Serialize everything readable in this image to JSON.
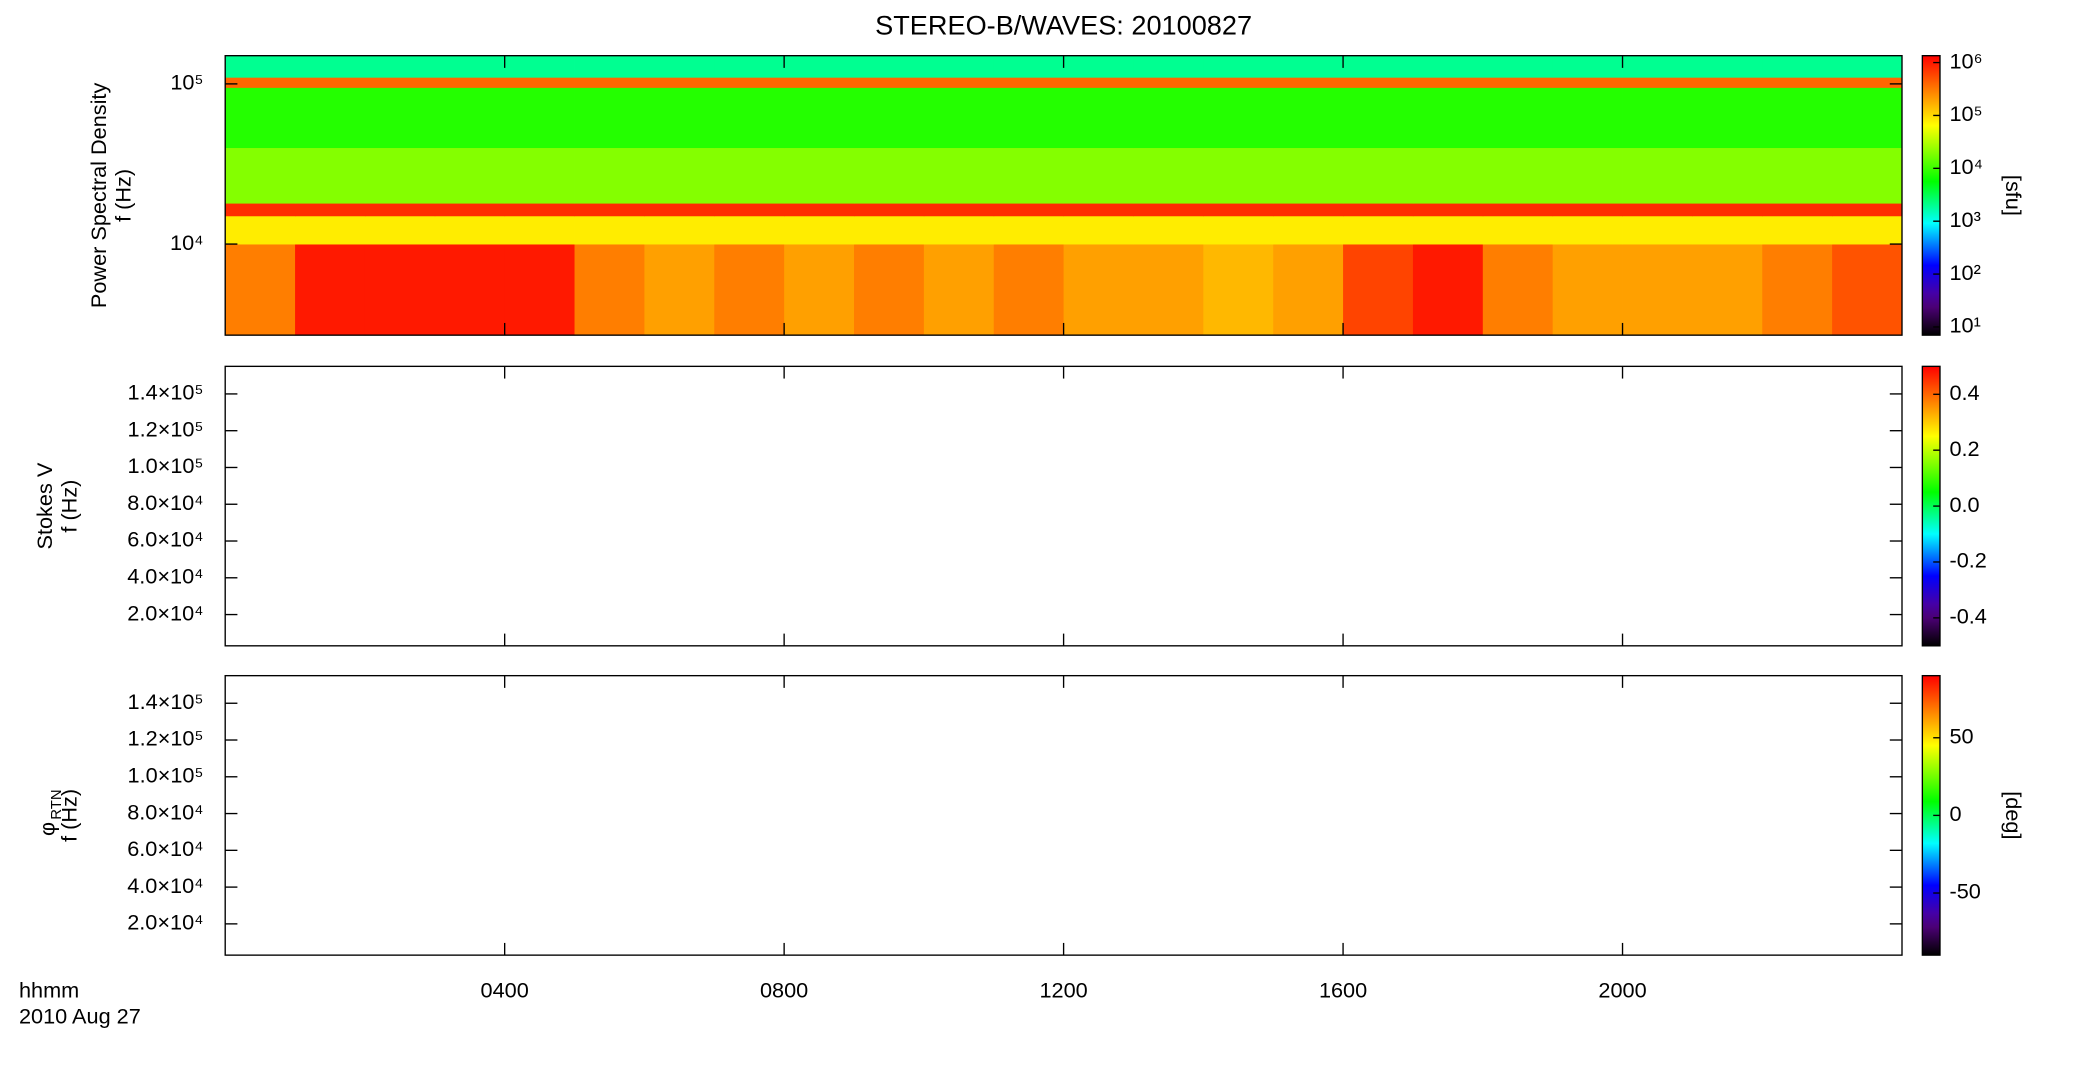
{
  "chart_data": [
    {
      "type": "heatmap",
      "title": "STEREO-B/WAVES: 20100827",
      "ylabel": [
        "Power Spectral Density",
        "f (Hz)"
      ],
      "colorbar_label": "[sfu]",
      "xlim": [
        0,
        24
      ],
      "ylim": [
        2700,
        150000
      ],
      "ylog": true,
      "yticks": [
        {
          "value": 10000,
          "label": "10⁴"
        },
        {
          "value": 100000,
          "label": "10⁵"
        }
      ],
      "clim": [
        7,
        1350000
      ],
      "clog": true,
      "cticks": [
        {
          "value": 10,
          "label": "10¹"
        },
        {
          "value": 100,
          "label": "10²"
        },
        {
          "value": 1000,
          "label": "10³"
        },
        {
          "value": 10000,
          "label": "10⁴"
        },
        {
          "value": 100000,
          "label": "10⁵"
        },
        {
          "value": 1000000,
          "label": "10⁶"
        }
      ],
      "x_edges": [
        0,
        1,
        2,
        3,
        4,
        5,
        6,
        7,
        8,
        9,
        10,
        11,
        12,
        13,
        14,
        15,
        16,
        17,
        18,
        19,
        20,
        21,
        22,
        23,
        24
      ],
      "y_edges": [
        2700,
        10000,
        15000,
        18000,
        40000,
        95000,
        110000,
        150000
      ],
      "values": [
        [
          300000,
          1000000,
          1000000,
          1000000,
          1000000,
          300000,
          200000,
          300000,
          200000,
          300000,
          200000,
          300000,
          200000,
          200000,
          150000,
          200000,
          600000,
          1000000,
          300000,
          200000,
          200000,
          200000,
          300000,
          500000
        ],
        [
          80000,
          80000,
          80000,
          80000,
          80000,
          80000,
          80000,
          80000,
          80000,
          80000,
          80000,
          80000,
          80000,
          80000,
          80000,
          80000,
          80000,
          80000,
          80000,
          80000,
          80000,
          80000,
          80000,
          80000
        ],
        [
          800000,
          800000,
          800000,
          800000,
          800000,
          800000,
          800000,
          800000,
          800000,
          800000,
          800000,
          800000,
          800000,
          800000,
          800000,
          800000,
          800000,
          800000,
          800000,
          800000,
          800000,
          800000,
          800000,
          800000
        ],
        [
          20000,
          20000,
          20000,
          20000,
          20000,
          20000,
          20000,
          20000,
          20000,
          20000,
          20000,
          20000,
          20000,
          20000,
          20000,
          20000,
          20000,
          20000,
          20000,
          20000,
          20000,
          20000,
          20000,
          20000
        ],
        [
          8000,
          8000,
          8000,
          8000,
          8000,
          8000,
          8000,
          8000,
          8000,
          8000,
          8000,
          8000,
          8000,
          8000,
          8000,
          8000,
          8000,
          8000,
          8000,
          8000,
          8000,
          8000,
          8000,
          8000
        ],
        [
          400000,
          400000,
          400000,
          400000,
          400000,
          400000,
          400000,
          400000,
          400000,
          400000,
          400000,
          400000,
          400000,
          400000,
          400000,
          400000,
          400000,
          400000,
          400000,
          400000,
          400000,
          400000,
          400000,
          400000
        ],
        [
          2000,
          2000,
          2000,
          2000,
          2000,
          2000,
          2000,
          2000,
          2000,
          2000,
          2000,
          2000,
          2000,
          2000,
          2000,
          2000,
          2000,
          2000,
          2000,
          2000,
          2000,
          2000,
          2000,
          2000
        ]
      ]
    },
    {
      "type": "heatmap",
      "ylabel": [
        "Stokes V",
        "f (Hz)"
      ],
      "xlim": [
        0,
        24
      ],
      "ylim": [
        3000,
        155000
      ],
      "yticks": [
        {
          "value": 20000,
          "label": "2.0×10⁴"
        },
        {
          "value": 40000,
          "label": "4.0×10⁴"
        },
        {
          "value": 60000,
          "label": "6.0×10⁴"
        },
        {
          "value": 80000,
          "label": "8.0×10⁴"
        },
        {
          "value": 100000,
          "label": "1.0×10⁵"
        },
        {
          "value": 120000,
          "label": "1.2×10⁵"
        },
        {
          "value": 140000,
          "label": "1.4×10⁵"
        }
      ],
      "clim": [
        -0.5,
        0.5
      ],
      "cticks": [
        -0.4,
        -0.2,
        {
          "value": 0,
          "label": "0.0"
        },
        0.2,
        0.4
      ]
    },
    {
      "type": "heatmap",
      "ylabel_symbol": "φ",
      "ylabel_subscript": "RTN",
      "ylabel": [
        "f (Hz)"
      ],
      "colorbar_label": "[deg]",
      "xlim": [
        0,
        24
      ],
      "ylim": [
        3000,
        155000
      ],
      "yticks": [
        {
          "value": 20000,
          "label": "2.0×10⁴"
        },
        {
          "value": 40000,
          "label": "4.0×10⁴"
        },
        {
          "value": 60000,
          "label": "6.0×10⁴"
        },
        {
          "value": 80000,
          "label": "8.0×10⁴"
        },
        {
          "value": 100000,
          "label": "1.0×10⁵"
        },
        {
          "value": 120000,
          "label": "1.2×10⁵"
        },
        {
          "value": 140000,
          "label": "1.4×10⁵"
        }
      ],
      "clim": [
        -90,
        90
      ],
      "cticks": [
        -50,
        0,
        50
      ],
      "xticks": [
        {
          "value": 4,
          "label": "0400"
        },
        {
          "value": 8,
          "label": "0800"
        },
        {
          "value": 12,
          "label": "1200"
        },
        {
          "value": 16,
          "label": "1600"
        },
        {
          "value": 20,
          "label": "2000"
        }
      ],
      "xlabel": "hhmm",
      "date_label": "2010 Aug 27"
    }
  ]
}
